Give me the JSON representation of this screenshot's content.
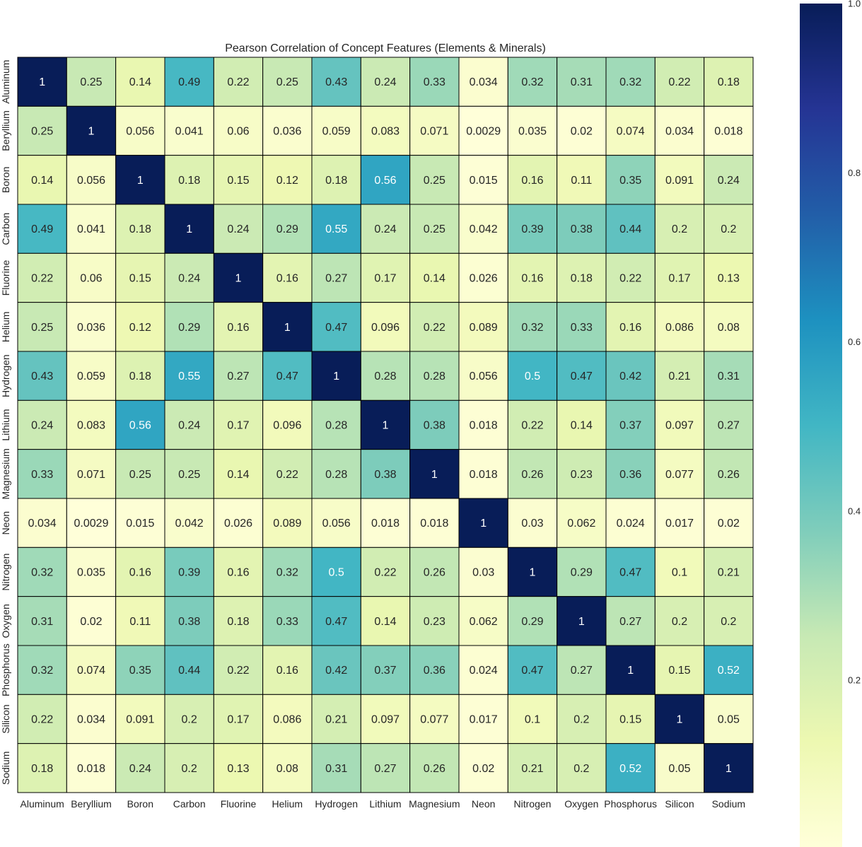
{
  "chart_data": {
    "type": "heatmap",
    "title": "Pearson Correlation of Concept Features (Elements & Minerals)",
    "xlabel": "",
    "ylabel": "",
    "labels": [
      "Aluminum",
      "Beryllium",
      "Boron",
      "Carbon",
      "Fluorine",
      "Helium",
      "Hydrogen",
      "Lithium",
      "Magnesium",
      "Neon",
      "Nitrogen",
      "Oxygen",
      "Phosphorus",
      "Silicon",
      "Sodium"
    ],
    "matrix": [
      [
        "1",
        "0.25",
        "0.14",
        "0.49",
        "0.22",
        "0.25",
        "0.43",
        "0.24",
        "0.33",
        "0.034",
        "0.32",
        "0.31",
        "0.32",
        "0.22",
        "0.18"
      ],
      [
        "0.25",
        "1",
        "0.056",
        "0.041",
        "0.06",
        "0.036",
        "0.059",
        "0.083",
        "0.071",
        "0.0029",
        "0.035",
        "0.02",
        "0.074",
        "0.034",
        "0.018"
      ],
      [
        "0.14",
        "0.056",
        "1",
        "0.18",
        "0.15",
        "0.12",
        "0.18",
        "0.56",
        "0.25",
        "0.015",
        "0.16",
        "0.11",
        "0.35",
        "0.091",
        "0.24"
      ],
      [
        "0.49",
        "0.041",
        "0.18",
        "1",
        "0.24",
        "0.29",
        "0.55",
        "0.24",
        "0.25",
        "0.042",
        "0.39",
        "0.38",
        "0.44",
        "0.2",
        "0.2"
      ],
      [
        "0.22",
        "0.06",
        "0.15",
        "0.24",
        "1",
        "0.16",
        "0.27",
        "0.17",
        "0.14",
        "0.026",
        "0.16",
        "0.18",
        "0.22",
        "0.17",
        "0.13"
      ],
      [
        "0.25",
        "0.036",
        "0.12",
        "0.29",
        "0.16",
        "1",
        "0.47",
        "0.096",
        "0.22",
        "0.089",
        "0.32",
        "0.33",
        "0.16",
        "0.086",
        "0.08"
      ],
      [
        "0.43",
        "0.059",
        "0.18",
        "0.55",
        "0.27",
        "0.47",
        "1",
        "0.28",
        "0.28",
        "0.056",
        "0.5",
        "0.47",
        "0.42",
        "0.21",
        "0.31"
      ],
      [
        "0.24",
        "0.083",
        "0.56",
        "0.24",
        "0.17",
        "0.096",
        "0.28",
        "1",
        "0.38",
        "0.018",
        "0.22",
        "0.14",
        "0.37",
        "0.097",
        "0.27"
      ],
      [
        "0.33",
        "0.071",
        "0.25",
        "0.25",
        "0.14",
        "0.22",
        "0.28",
        "0.38",
        "1",
        "0.018",
        "0.26",
        "0.23",
        "0.36",
        "0.077",
        "0.26"
      ],
      [
        "0.034",
        "0.0029",
        "0.015",
        "0.042",
        "0.026",
        "0.089",
        "0.056",
        "0.018",
        "0.018",
        "1",
        "0.03",
        "0.062",
        "0.024",
        "0.017",
        "0.02"
      ],
      [
        "0.32",
        "0.035",
        "0.16",
        "0.39",
        "0.16",
        "0.32",
        "0.5",
        "0.22",
        "0.26",
        "0.03",
        "1",
        "0.29",
        "0.47",
        "0.1",
        "0.21"
      ],
      [
        "0.31",
        "0.02",
        "0.11",
        "0.38",
        "0.18",
        "0.33",
        "0.47",
        "0.14",
        "0.23",
        "0.062",
        "0.29",
        "1",
        "0.27",
        "0.2",
        "0.2"
      ],
      [
        "0.32",
        "0.074",
        "0.35",
        "0.44",
        "0.22",
        "0.16",
        "0.42",
        "0.37",
        "0.36",
        "0.024",
        "0.47",
        "0.27",
        "1",
        "0.15",
        "0.52"
      ],
      [
        "0.22",
        "0.034",
        "0.091",
        "0.2",
        "0.17",
        "0.086",
        "0.21",
        "0.097",
        "0.077",
        "0.017",
        "0.1",
        "0.2",
        "0.15",
        "1",
        "0.05"
      ],
      [
        "0.18",
        "0.018",
        "0.24",
        "0.2",
        "0.13",
        "0.08",
        "0.31",
        "0.27",
        "0.26",
        "0.02",
        "0.21",
        "0.2",
        "0.52",
        "0.05",
        "1"
      ]
    ],
    "colorbar": {
      "colormap": "YlGnBu",
      "vmin": 0.0029,
      "vmax": 1.0,
      "ticks": [
        {
          "value": 0.2,
          "label": "0.2"
        },
        {
          "value": 0.4,
          "label": "0.4"
        },
        {
          "value": 0.6,
          "label": "0.6"
        },
        {
          "value": 0.8,
          "label": "0.8"
        },
        {
          "value": 1.0,
          "label": "1.0"
        }
      ]
    },
    "annotations": true,
    "grid": false,
    "legend": "colorbar-right"
  }
}
